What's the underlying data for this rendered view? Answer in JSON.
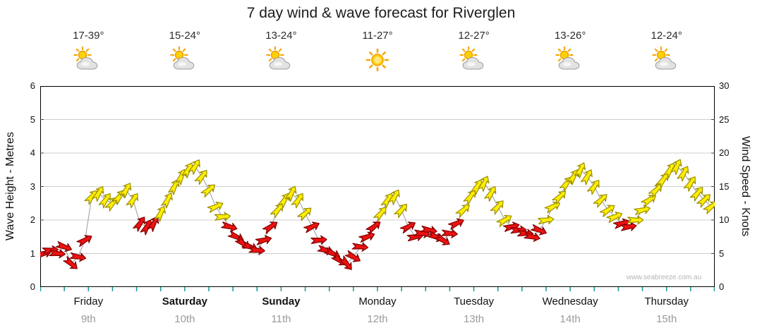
{
  "page": {
    "title": "7 day wind & wave forecast for Riverglen",
    "watermark": "www.seabreeze.com.au"
  },
  "axes": {
    "left_label": "Wave Height - Metres",
    "right_label": "Wind Speed - Knots",
    "wave_ticks": [
      0,
      1,
      2,
      3,
      4,
      5,
      6
    ],
    "wind_ticks": [
      0,
      5,
      10,
      15,
      20,
      25,
      30
    ]
  },
  "days": [
    {
      "name": "Friday",
      "date": "9th",
      "temp": "17-39°",
      "icon": "sun-cloud",
      "bold": false
    },
    {
      "name": "Saturday",
      "date": "10th",
      "temp": "15-24°",
      "icon": "sun-cloud",
      "bold": true
    },
    {
      "name": "Sunday",
      "date": "11th",
      "temp": "13-24°",
      "icon": "sun-cloud",
      "bold": true
    },
    {
      "name": "Monday",
      "date": "12th",
      "temp": "11-27°",
      "icon": "sun",
      "bold": false
    },
    {
      "name": "Tuesday",
      "date": "13th",
      "temp": "12-27°",
      "icon": "sun-cloud",
      "bold": false
    },
    {
      "name": "Wednesday",
      "date": "14th",
      "temp": "13-26°",
      "icon": "sun-cloud",
      "bold": false
    },
    {
      "name": "Thursday",
      "date": "15th",
      "temp": "12-24°",
      "icon": "sun-cloud",
      "bold": false
    }
  ],
  "chart_data": {
    "type": "wind-arrows",
    "title": "7 day wind & wave forecast for Riverglen",
    "x_categories_days": [
      "Friday 9th",
      "Saturday 10th",
      "Sunday 11th",
      "Monday 12th",
      "Tuesday 13th",
      "Wednesday 14th",
      "Thursday 15th"
    ],
    "points_per_day": 14,
    "wind_ylim": [
      0,
      30
    ],
    "wave_ylim": [
      0,
      6
    ],
    "grid": "horizontal-only",
    "legend": "none",
    "point_format": "[wind_knots, arrow_direction_deg_clockwise_from_up]",
    "color_rule": {
      "under_10_knots": "#ee1111",
      "10_knots_and_over": "#ffee00"
    },
    "points": [
      [
        5,
        75
      ],
      [
        5.5,
        85
      ],
      [
        5,
        95
      ],
      [
        6,
        110
      ],
      [
        3.5,
        130
      ],
      [
        4.5,
        100
      ],
      [
        7,
        60
      ],
      [
        13.5,
        40
      ],
      [
        14,
        32
      ],
      [
        13,
        35
      ],
      [
        12.5,
        40
      ],
      [
        13.5,
        35
      ],
      [
        14.5,
        30
      ],
      [
        13,
        34
      ],
      [
        9.5,
        35
      ],
      [
        9,
        30
      ],
      [
        9.5,
        28
      ],
      [
        11,
        26
      ],
      [
        13,
        28
      ],
      [
        15,
        26
      ],
      [
        16.5,
        24
      ],
      [
        17.5,
        28
      ],
      [
        18,
        32
      ],
      [
        16.5,
        38
      ],
      [
        14.5,
        50
      ],
      [
        12,
        65
      ],
      [
        10.5,
        85
      ],
      [
        9,
        105
      ],
      [
        7.5,
        115
      ],
      [
        6.5,
        125
      ],
      [
        6,
        110
      ],
      [
        5.5,
        95
      ],
      [
        7,
        75
      ],
      [
        9,
        55
      ],
      [
        11.5,
        40
      ],
      [
        13,
        32
      ],
      [
        14,
        28
      ],
      [
        13,
        35
      ],
      [
        11,
        48
      ],
      [
        9,
        65
      ],
      [
        7,
        85
      ],
      [
        5.5,
        105
      ],
      [
        5,
        115
      ],
      [
        4,
        125
      ],
      [
        3.5,
        140
      ],
      [
        4.5,
        120
      ],
      [
        6,
        95
      ],
      [
        7.5,
        70
      ],
      [
        9,
        52
      ],
      [
        11,
        40
      ],
      [
        13,
        32
      ],
      [
        13.5,
        30
      ],
      [
        11.5,
        42
      ],
      [
        9,
        60
      ],
      [
        7.5,
        80
      ],
      [
        8,
        95
      ],
      [
        8.5,
        100
      ],
      [
        7.5,
        112
      ],
      [
        7,
        122
      ],
      [
        8,
        95
      ],
      [
        9.5,
        65
      ],
      [
        11.5,
        48
      ],
      [
        13.5,
        36
      ],
      [
        15,
        30
      ],
      [
        15.5,
        26
      ],
      [
        14,
        32
      ],
      [
        12,
        42
      ],
      [
        10,
        58
      ],
      [
        9,
        75
      ],
      [
        8.5,
        88
      ],
      [
        8,
        92
      ],
      [
        7.5,
        102
      ],
      [
        8.5,
        112
      ],
      [
        10,
        82
      ],
      [
        12,
        62
      ],
      [
        13.5,
        46
      ],
      [
        15.5,
        36
      ],
      [
        16.5,
        30
      ],
      [
        17.5,
        26
      ],
      [
        16.5,
        30
      ],
      [
        15,
        36
      ],
      [
        13,
        46
      ],
      [
        11.5,
        56
      ],
      [
        10.5,
        66
      ],
      [
        9.5,
        72
      ],
      [
        9,
        82
      ],
      [
        10,
        90
      ],
      [
        11.5,
        76
      ],
      [
        13,
        56
      ],
      [
        14.5,
        46
      ],
      [
        16,
        36
      ],
      [
        17.5,
        30
      ],
      [
        18,
        26
      ],
      [
        17,
        30
      ],
      [
        15.5,
        34
      ],
      [
        14,
        40
      ],
      [
        13,
        46
      ],
      [
        12,
        52
      ]
    ]
  },
  "colors": {
    "arrow_low_fill": "#ee1111",
    "arrow_low_stroke": "#7e0000",
    "arrow_high_fill": "#ffee00",
    "arrow_high_stroke": "#9a8f00",
    "gridline": "#cfcfcf",
    "frame": "#000000",
    "bottom_ticks": "#0b9b9b",
    "connect_line": "#9a9a9a",
    "date_text": "#9a9a9a"
  }
}
